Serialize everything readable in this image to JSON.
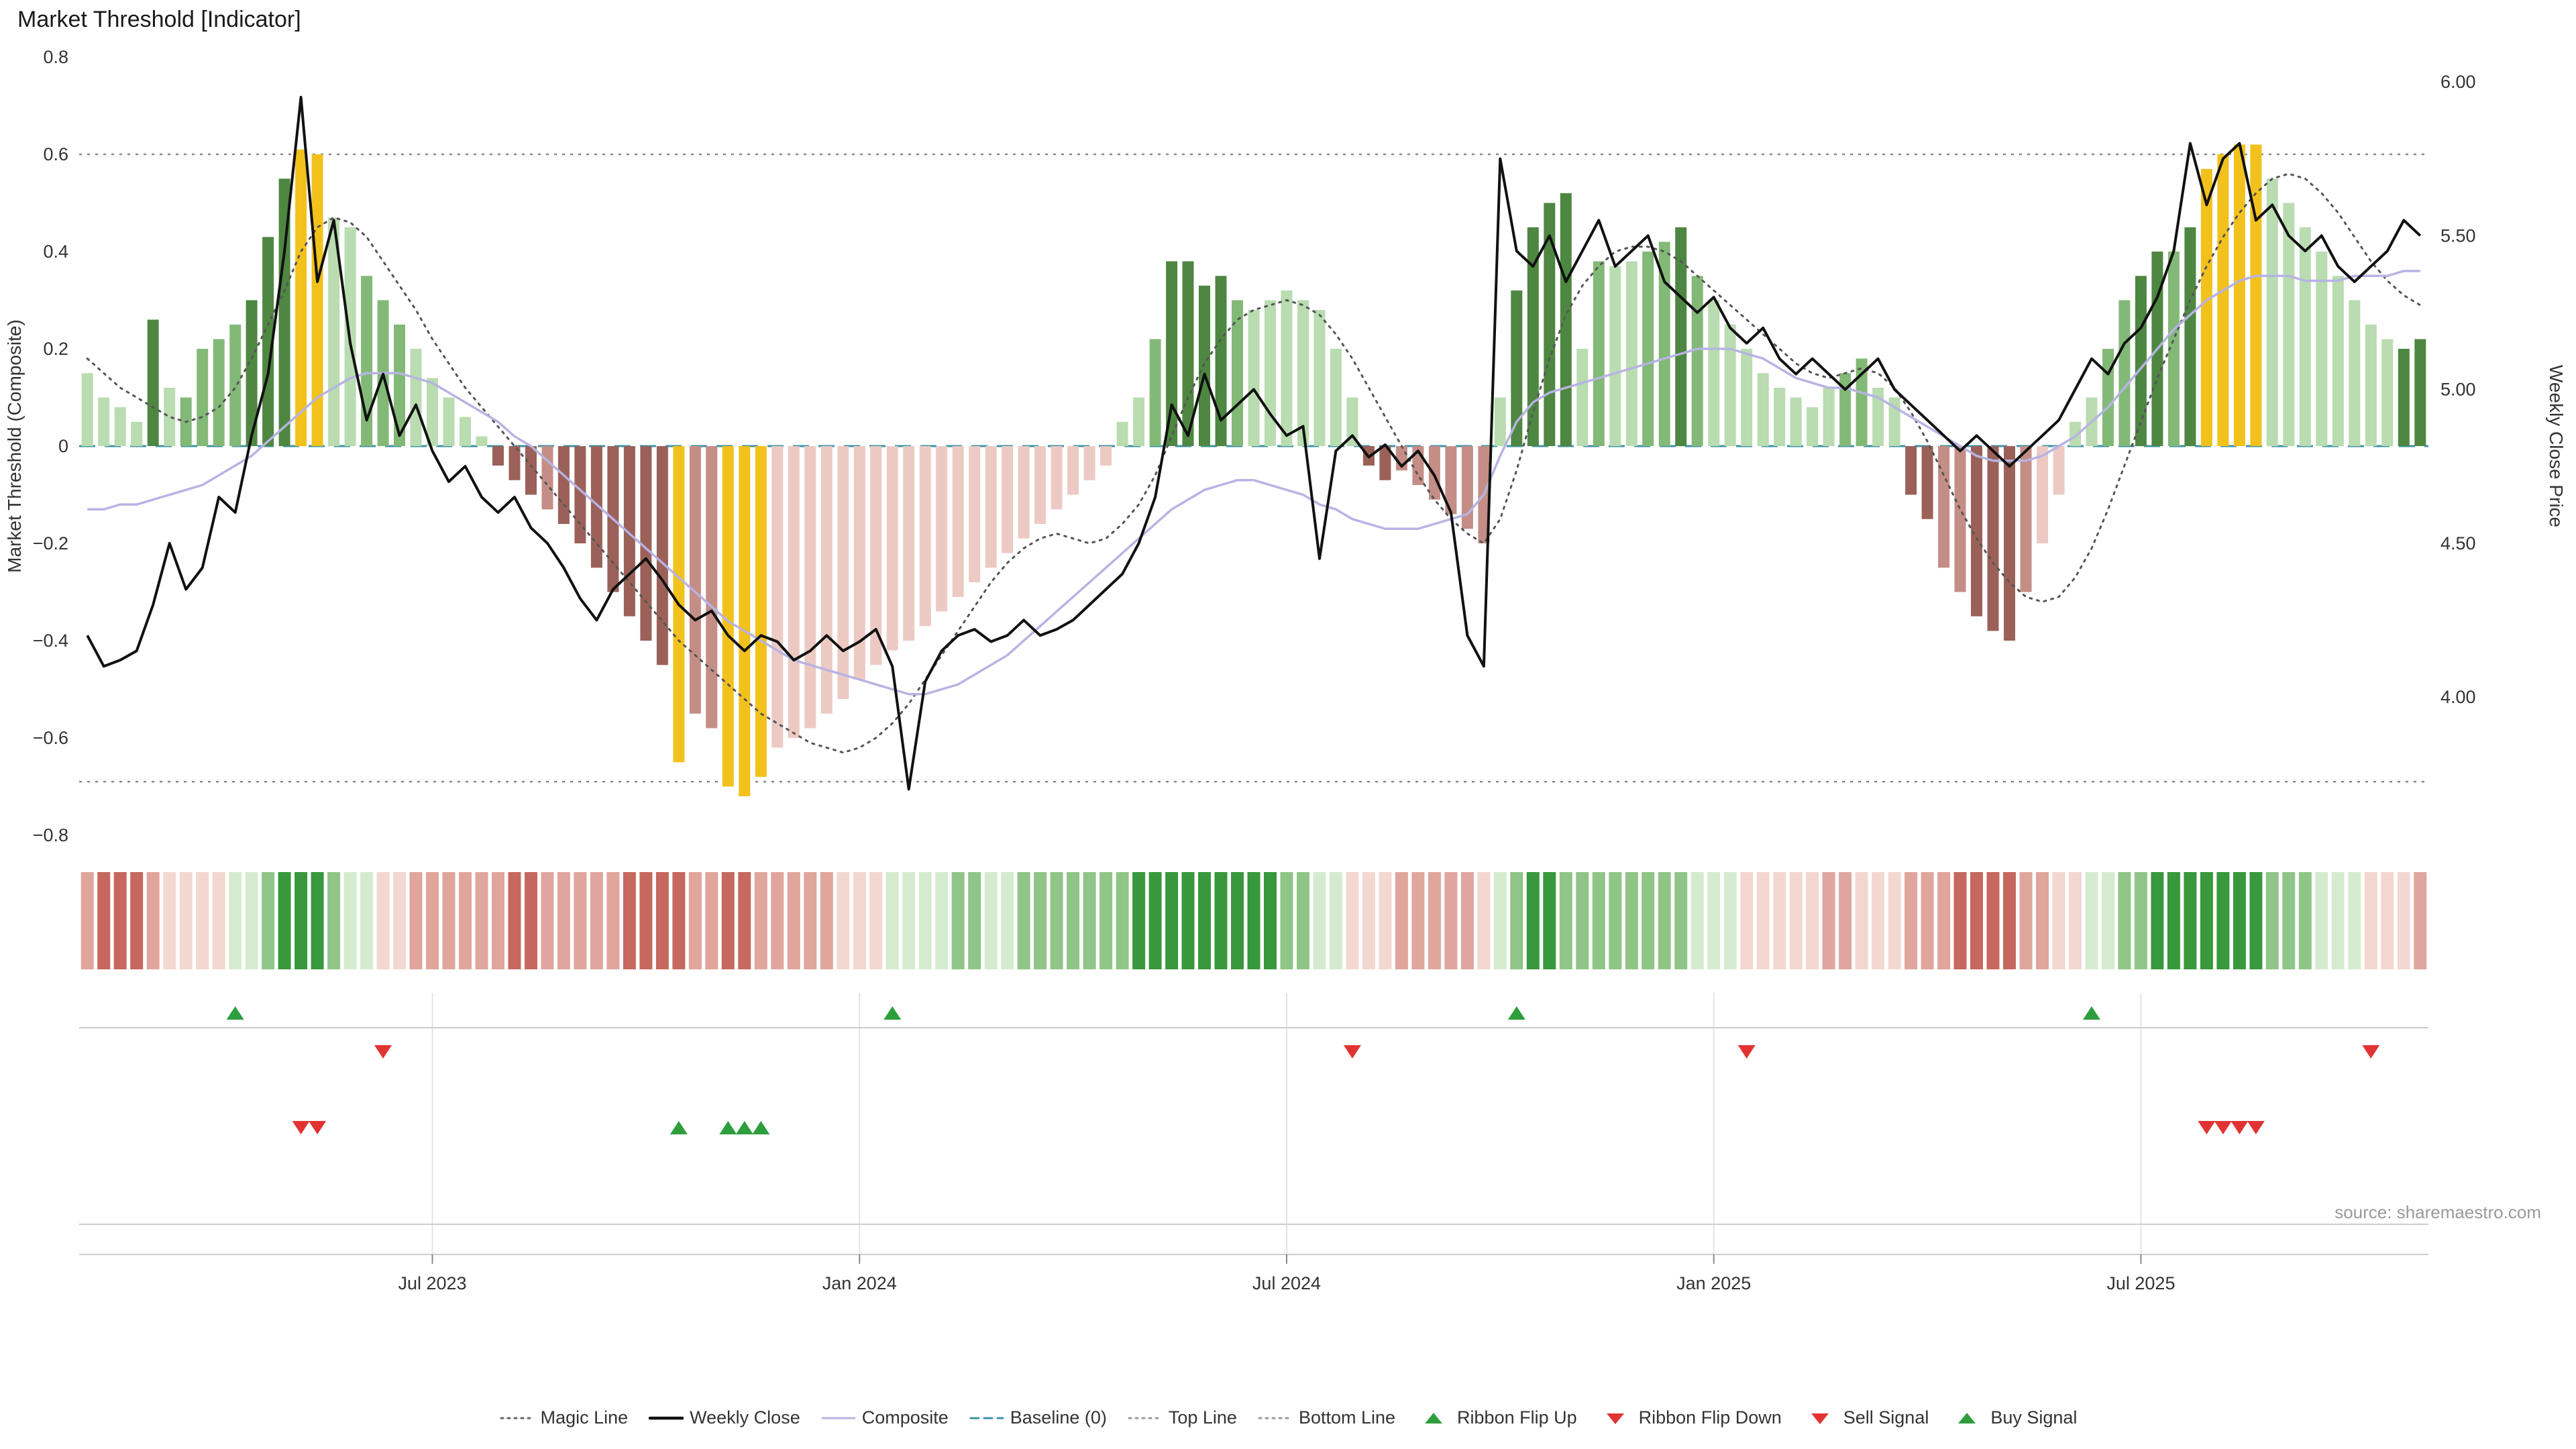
{
  "page": {
    "title": "Market Threshold [Indicator]",
    "source": "source: sharemaestro.com"
  },
  "colors": {
    "bars": {
      "g1": "#b9dcb0",
      "g2": "#83b977",
      "g3": "#4e8741",
      "r1": "#eccac3",
      "r2": "#c48e86",
      "r3": "#9b6159",
      "au": "#f2c11c"
    },
    "ribbon_green": [
      "#d5ebcf",
      "#8fc586",
      "#37993b"
    ],
    "ribbon_red": [
      "#f3d7d1",
      "#e0a59c",
      "#c6685f"
    ],
    "weekly_close": "#111111",
    "magic_line": "#555555",
    "composite_line": "#b7b3e3",
    "baseline": "#3d93a6",
    "top_bottom_line": "#8a8a8a",
    "signal_green": "#2e9e3d",
    "signal_red": "#e23333",
    "panel_line": "#cccccc",
    "panel_gridline": "#e3e3e3",
    "axis_text": "#333333"
  },
  "chart_data": {
    "type": "bar+line combo with color ribbon and signal-marker rows",
    "x_unit": "weekly bars, Feb 2023 - Oct 2025",
    "left_axis": {
      "label": "Market Threshold (Composite)",
      "range": [
        -0.8,
        0.8
      ],
      "ticks": [
        {
          "label": "0.8",
          "value": 0.8
        },
        {
          "label": "0.6",
          "value": 0.6
        },
        {
          "label": "0.4",
          "value": 0.4
        },
        {
          "label": "0.2",
          "value": 0.2
        },
        {
          "label": "0",
          "value": 0
        },
        {
          "label": "−0.2",
          "value": -0.2
        },
        {
          "label": "−0.4",
          "value": -0.4
        },
        {
          "label": "−0.6",
          "value": -0.6
        },
        {
          "label": "−0.8",
          "value": -0.8
        }
      ]
    },
    "right_axis": {
      "label": "Weekly Close Price",
      "ticks": [
        {
          "label": "6.00",
          "value": 6.0
        },
        {
          "label": "5.50",
          "value": 5.5
        },
        {
          "label": "5.00",
          "value": 5.0
        },
        {
          "label": "4.50",
          "value": 4.5
        },
        {
          "label": "4.00",
          "value": 4.0
        }
      ]
    },
    "x_ticks": [
      {
        "label": "Jul 2023",
        "week": 21
      },
      {
        "label": "Jan 2024",
        "week": 47
      },
      {
        "label": "Jul 2024",
        "week": 73
      },
      {
        "label": "Jan 2025",
        "week": 99
      },
      {
        "label": "Jul 2025",
        "week": 125
      }
    ],
    "top_line": 0.6,
    "bottom_line": -0.69,
    "baseline": 0,
    "composite_bars": {
      "values": [
        0.15,
        0.1,
        0.08,
        0.05,
        0.26,
        0.12,
        0.1,
        0.2,
        0.22,
        0.25,
        0.3,
        0.43,
        0.55,
        0.61,
        0.6,
        0.47,
        0.45,
        0.35,
        0.3,
        0.25,
        0.2,
        0.14,
        0.1,
        0.06,
        0.02,
        -0.04,
        -0.07,
        -0.1,
        -0.13,
        -0.16,
        -0.2,
        -0.25,
        -0.3,
        -0.35,
        -0.4,
        -0.45,
        -0.65,
        -0.55,
        -0.58,
        -0.7,
        -0.72,
        -0.68,
        -0.62,
        -0.6,
        -0.58,
        -0.55,
        -0.52,
        -0.48,
        -0.45,
        -0.42,
        -0.4,
        -0.37,
        -0.34,
        -0.31,
        -0.28,
        -0.25,
        -0.22,
        -0.19,
        -0.16,
        -0.13,
        -0.1,
        -0.07,
        -0.04,
        0.05,
        0.1,
        0.22,
        0.38,
        0.38,
        0.33,
        0.35,
        0.3,
        0.28,
        0.3,
        0.32,
        0.3,
        0.28,
        0.2,
        0.1,
        -0.04,
        -0.07,
        -0.05,
        -0.08,
        -0.11,
        -0.14,
        -0.17,
        -0.2,
        0.1,
        0.32,
        0.45,
        0.5,
        0.52,
        0.2,
        0.38,
        0.37,
        0.38,
        0.4,
        0.42,
        0.45,
        0.35,
        0.3,
        0.25,
        0.2,
        0.15,
        0.12,
        0.1,
        0.08,
        0.12,
        0.15,
        0.18,
        0.12,
        0.1,
        -0.1,
        -0.15,
        -0.25,
        -0.3,
        -0.35,
        -0.38,
        -0.4,
        -0.3,
        -0.2,
        -0.1,
        0.05,
        0.1,
        0.2,
        0.3,
        0.35,
        0.4,
        0.4,
        0.45,
        0.57,
        0.6,
        0.62,
        0.62,
        0.55,
        0.5,
        0.45,
        0.4,
        0.35,
        0.3,
        0.25,
        0.22,
        0.2,
        0.22
      ],
      "colors": [
        "g1",
        "g1",
        "g1",
        "g1",
        "g3",
        "g1",
        "g2",
        "g2",
        "g2",
        "g2",
        "g3",
        "g3",
        "g3",
        "au",
        "au",
        "g1",
        "g1",
        "g2",
        "g2",
        "g2",
        "g1",
        "g1",
        "g1",
        "g1",
        "g1",
        "r3",
        "r3",
        "r3",
        "r2",
        "r3",
        "r3",
        "r3",
        "r3",
        "r3",
        "r3",
        "r3",
        "au",
        "r2",
        "r2",
        "au",
        "au",
        "au",
        "r1",
        "r1",
        "r1",
        "r1",
        "r1",
        "r1",
        "r1",
        "r1",
        "r1",
        "r1",
        "r1",
        "r1",
        "r1",
        "r1",
        "r1",
        "r1",
        "r1",
        "r1",
        "r1",
        "r1",
        "r1",
        "g1",
        "g1",
        "g2",
        "g3",
        "g3",
        "g3",
        "g3",
        "g2",
        "g1",
        "g1",
        "g1",
        "g1",
        "g1",
        "g1",
        "g1",
        "r3",
        "r3",
        "r2",
        "r2",
        "r2",
        "r2",
        "r2",
        "r2",
        "g1",
        "g3",
        "g3",
        "g3",
        "g3",
        "g1",
        "g2",
        "g1",
        "g1",
        "g2",
        "g2",
        "g3",
        "g2",
        "g1",
        "g1",
        "g1",
        "g1",
        "g1",
        "g1",
        "g1",
        "g1",
        "g2",
        "g2",
        "g1",
        "g1",
        "r3",
        "r3",
        "r2",
        "r2",
        "r3",
        "r3",
        "r3",
        "r2",
        "r1",
        "r1",
        "g1",
        "g1",
        "g2",
        "g2",
        "g3",
        "g3",
        "g2",
        "g3",
        "au",
        "au",
        "au",
        "au",
        "g1",
        "g1",
        "g1",
        "g1",
        "g1",
        "g1",
        "g1",
        "g1",
        "g3",
        "g3"
      ]
    },
    "weekly_close": [
      4.2,
      4.1,
      4.12,
      4.15,
      4.3,
      4.5,
      4.35,
      4.42,
      4.65,
      4.6,
      4.85,
      5.05,
      5.45,
      5.95,
      5.35,
      5.55,
      5.15,
      4.9,
      5.05,
      4.85,
      4.95,
      4.8,
      4.7,
      4.75,
      4.65,
      4.6,
      4.65,
      4.55,
      4.5,
      4.42,
      4.32,
      4.25,
      4.35,
      4.4,
      4.45,
      4.38,
      4.3,
      4.25,
      4.28,
      4.2,
      4.15,
      4.2,
      4.18,
      4.12,
      4.15,
      4.2,
      4.15,
      4.18,
      4.22,
      4.1,
      3.7,
      4.05,
      4.15,
      4.2,
      4.22,
      4.18,
      4.2,
      4.25,
      4.2,
      4.22,
      4.25,
      4.3,
      4.35,
      4.4,
      4.5,
      4.65,
      4.95,
      4.85,
      5.05,
      4.9,
      4.95,
      5.0,
      4.92,
      4.85,
      4.88,
      4.45,
      4.8,
      4.85,
      4.78,
      4.82,
      4.75,
      4.8,
      4.72,
      4.6,
      4.2,
      4.1,
      5.75,
      5.45,
      5.4,
      5.5,
      5.35,
      5.45,
      5.55,
      5.4,
      5.45,
      5.5,
      5.35,
      5.3,
      5.25,
      5.3,
      5.2,
      5.15,
      5.2,
      5.1,
      5.05,
      5.1,
      5.05,
      5.0,
      5.05,
      5.1,
      5.0,
      4.95,
      4.9,
      4.85,
      4.8,
      4.85,
      4.8,
      4.75,
      4.8,
      4.85,
      4.9,
      5.0,
      5.1,
      5.05,
      5.15,
      5.2,
      5.3,
      5.45,
      5.8,
      5.6,
      5.75,
      5.8,
      5.55,
      5.6,
      5.5,
      5.45,
      5.5,
      5.4,
      5.35,
      5.4,
      5.45,
      5.55,
      5.5
    ],
    "magic_line": [
      0.18,
      0.15,
      0.12,
      0.1,
      0.08,
      0.06,
      0.05,
      0.06,
      0.08,
      0.12,
      0.18,
      0.25,
      0.32,
      0.4,
      0.45,
      0.47,
      0.46,
      0.43,
      0.38,
      0.33,
      0.28,
      0.22,
      0.17,
      0.12,
      0.08,
      0.04,
      0.0,
      -0.04,
      -0.08,
      -0.12,
      -0.16,
      -0.2,
      -0.24,
      -0.28,
      -0.32,
      -0.36,
      -0.4,
      -0.43,
      -0.46,
      -0.49,
      -0.52,
      -0.55,
      -0.57,
      -0.59,
      -0.61,
      -0.62,
      -0.63,
      -0.62,
      -0.6,
      -0.57,
      -0.53,
      -0.48,
      -0.43,
      -0.38,
      -0.33,
      -0.28,
      -0.24,
      -0.21,
      -0.19,
      -0.18,
      -0.19,
      -0.2,
      -0.19,
      -0.16,
      -0.12,
      -0.06,
      0.02,
      0.1,
      0.17,
      0.22,
      0.26,
      0.28,
      0.29,
      0.3,
      0.29,
      0.27,
      0.23,
      0.18,
      0.12,
      0.06,
      0.0,
      -0.06,
      -0.11,
      -0.15,
      -0.18,
      -0.2,
      -0.15,
      -0.05,
      0.07,
      0.18,
      0.27,
      0.33,
      0.37,
      0.4,
      0.41,
      0.41,
      0.4,
      0.38,
      0.35,
      0.32,
      0.29,
      0.26,
      0.23,
      0.2,
      0.17,
      0.15,
      0.14,
      0.15,
      0.16,
      0.15,
      0.12,
      0.07,
      0.01,
      -0.06,
      -0.13,
      -0.19,
      -0.24,
      -0.28,
      -0.31,
      -0.32,
      -0.31,
      -0.27,
      -0.21,
      -0.13,
      -0.04,
      0.05,
      0.14,
      0.22,
      0.3,
      0.37,
      0.43,
      0.48,
      0.52,
      0.55,
      0.56,
      0.55,
      0.52,
      0.48,
      0.43,
      0.38,
      0.34,
      0.31,
      0.29
    ],
    "composite_line": [
      -0.13,
      -0.13,
      -0.12,
      -0.12,
      -0.11,
      -0.1,
      -0.09,
      -0.08,
      -0.06,
      -0.04,
      -0.02,
      0.01,
      0.04,
      0.07,
      0.1,
      0.12,
      0.14,
      0.15,
      0.15,
      0.15,
      0.14,
      0.13,
      0.11,
      0.09,
      0.07,
      0.05,
      0.02,
      0.0,
      -0.03,
      -0.06,
      -0.09,
      -0.12,
      -0.15,
      -0.18,
      -0.21,
      -0.24,
      -0.27,
      -0.3,
      -0.33,
      -0.36,
      -0.38,
      -0.4,
      -0.42,
      -0.44,
      -0.45,
      -0.46,
      -0.47,
      -0.48,
      -0.49,
      -0.5,
      -0.51,
      -0.51,
      -0.5,
      -0.49,
      -0.47,
      -0.45,
      -0.43,
      -0.4,
      -0.37,
      -0.34,
      -0.31,
      -0.28,
      -0.25,
      -0.22,
      -0.19,
      -0.16,
      -0.13,
      -0.11,
      -0.09,
      -0.08,
      -0.07,
      -0.07,
      -0.08,
      -0.09,
      -0.1,
      -0.12,
      -0.13,
      -0.15,
      -0.16,
      -0.17,
      -0.17,
      -0.17,
      -0.16,
      -0.15,
      -0.14,
      -0.1,
      -0.02,
      0.05,
      0.09,
      0.11,
      0.12,
      0.13,
      0.14,
      0.15,
      0.16,
      0.17,
      0.18,
      0.19,
      0.2,
      0.2,
      0.2,
      0.19,
      0.18,
      0.16,
      0.14,
      0.13,
      0.12,
      0.12,
      0.11,
      0.1,
      0.08,
      0.06,
      0.04,
      0.02,
      0.0,
      -0.02,
      -0.03,
      -0.03,
      -0.03,
      -0.02,
      0.0,
      0.02,
      0.05,
      0.08,
      0.12,
      0.16,
      0.2,
      0.24,
      0.27,
      0.3,
      0.32,
      0.34,
      0.35,
      0.35,
      0.35,
      0.34,
      0.34,
      0.34,
      0.35,
      0.35,
      0.35,
      0.36,
      0.36
    ],
    "ribbon": [
      -2,
      -3,
      -3,
      -3,
      -2,
      -1,
      -1,
      -1,
      -1,
      1,
      1,
      2,
      3,
      3,
      3,
      2,
      1,
      1,
      -1,
      -1,
      -2,
      -2,
      -2,
      -2,
      -2,
      -2,
      -3,
      -3,
      -2,
      -2,
      -2,
      -2,
      -2,
      -3,
      -3,
      -3,
      -3,
      -2,
      -2,
      -3,
      -3,
      -2,
      -2,
      -2,
      -2,
      -2,
      -1,
      -1,
      -1,
      1,
      1,
      1,
      1,
      2,
      2,
      1,
      1,
      2,
      2,
      2,
      2,
      2,
      2,
      2,
      3,
      3,
      3,
      3,
      3,
      3,
      3,
      3,
      3,
      2,
      2,
      1,
      1,
      -1,
      -1,
      -1,
      -2,
      -2,
      -2,
      -2,
      -2,
      -1,
      1,
      2,
      3,
      3,
      2,
      2,
      2,
      2,
      2,
      2,
      2,
      2,
      1,
      1,
      1,
      -1,
      -1,
      -1,
      -1,
      -1,
      -2,
      -2,
      -1,
      -1,
      -1,
      -2,
      -2,
      -2,
      -3,
      -3,
      -3,
      -3,
      -2,
      -2,
      -1,
      -1,
      1,
      1,
      2,
      2,
      3,
      3,
      3,
      3,
      3,
      3,
      3,
      2,
      2,
      2,
      1,
      1,
      1,
      -1,
      -1,
      -1,
      -2
    ],
    "signals": {
      "ribbon_flip_up_weeks": [
        9,
        49,
        87,
        122
      ],
      "ribbon_flip_down_weeks": [
        18,
        77,
        101,
        139
      ],
      "buy_signal_weeks": [
        36,
        39,
        40,
        41
      ],
      "sell_signal_weeks": [
        13,
        14,
        129,
        130,
        131,
        132
      ]
    }
  },
  "legend": {
    "items": [
      {
        "label": "Magic Line",
        "marker": "dotted",
        "color": "#666666"
      },
      {
        "label": "Weekly Close",
        "marker": "solid-thick",
        "color": "#111111"
      },
      {
        "label": "Composite",
        "marker": "solid",
        "color": "#b7b3e3"
      },
      {
        "label": "Baseline (0)",
        "marker": "dashed",
        "color": "#3d93a6"
      },
      {
        "label": "Top Line",
        "marker": "dotted",
        "color": "#999999"
      },
      {
        "label": "Bottom Line",
        "marker": "dotted",
        "color": "#999999"
      },
      {
        "label": "Ribbon Flip Up",
        "marker": "triangle-up",
        "color": "#2e9e3d"
      },
      {
        "label": "Ribbon Flip Down",
        "marker": "triangle-down",
        "color": "#e23333"
      },
      {
        "label": "Sell Signal",
        "marker": "triangle-down",
        "color": "#e23333"
      },
      {
        "label": "Buy Signal",
        "marker": "triangle-up",
        "color": "#2e9e3d"
      }
    ]
  }
}
